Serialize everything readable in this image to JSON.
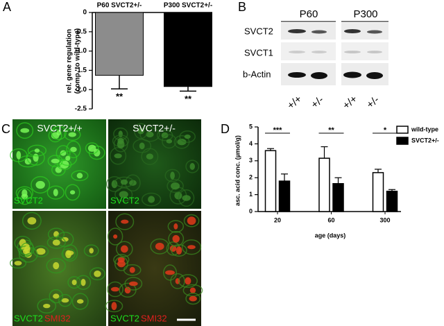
{
  "panel_labels": [
    "A",
    "B",
    "C",
    "D"
  ],
  "chart_data": [
    {
      "type": "bar",
      "categories": [
        "P60 SVCT2+/-",
        "P300 SVCT2+/-"
      ],
      "values": [
        -1.63,
        -1.92
      ],
      "errors": [
        0.35,
        0.12
      ],
      "colors": [
        "#8c8c8c",
        "#000000"
      ],
      "significance": [
        "**",
        "**"
      ],
      "ylabel": [
        "rel. gene regulation",
        "(comp. to wild-type)"
      ],
      "ylim": [
        -2.5,
        0
      ],
      "yticks": [
        0,
        -0.5,
        {
          "value": -1,
          "label": "-1.0"
        },
        -1.5,
        {
          "value": -2,
          "label": "-2.0"
        },
        -2.5
      ]
    },
    {
      "type": "grouped_bar",
      "categories": [
        "20",
        "60",
        "300"
      ],
      "series": [
        {
          "name": "wild-type",
          "color": "#ffffff",
          "values": [
            3.6,
            3.15,
            2.3
          ],
          "errors": [
            0.12,
            0.68,
            0.2
          ]
        },
        {
          "name": "SVCT2+/-",
          "color": "#000000",
          "values": [
            1.8,
            1.65,
            1.2
          ],
          "errors": [
            0.42,
            0.35,
            0.1
          ]
        }
      ],
      "significance": [
        "***",
        "**",
        "*"
      ],
      "xlabel": "age (days)",
      "ylabel": "asc. acid conc. (µmol/g)",
      "ylim": [
        0,
        5
      ],
      "yticks": [
        0,
        1,
        2,
        3,
        4,
        5
      ],
      "legend": "top-right"
    }
  ],
  "blot": {
    "columns": [
      "P60",
      "P300"
    ],
    "rows": [
      "SVCT2",
      "SVCT1",
      "b-Actin"
    ],
    "genotypes": [
      "+/+",
      "+/-",
      "+/+",
      "+/-"
    ]
  },
  "micrographs": {
    "columns": [
      "SVCT2+/+",
      "SVCT2+/-"
    ],
    "top_labels": [
      "SVCT2",
      "SVCT2"
    ],
    "bottom_labels": [
      [
        "SVCT2",
        "SMI32"
      ],
      [
        "SVCT2",
        "SMI32"
      ]
    ]
  }
}
